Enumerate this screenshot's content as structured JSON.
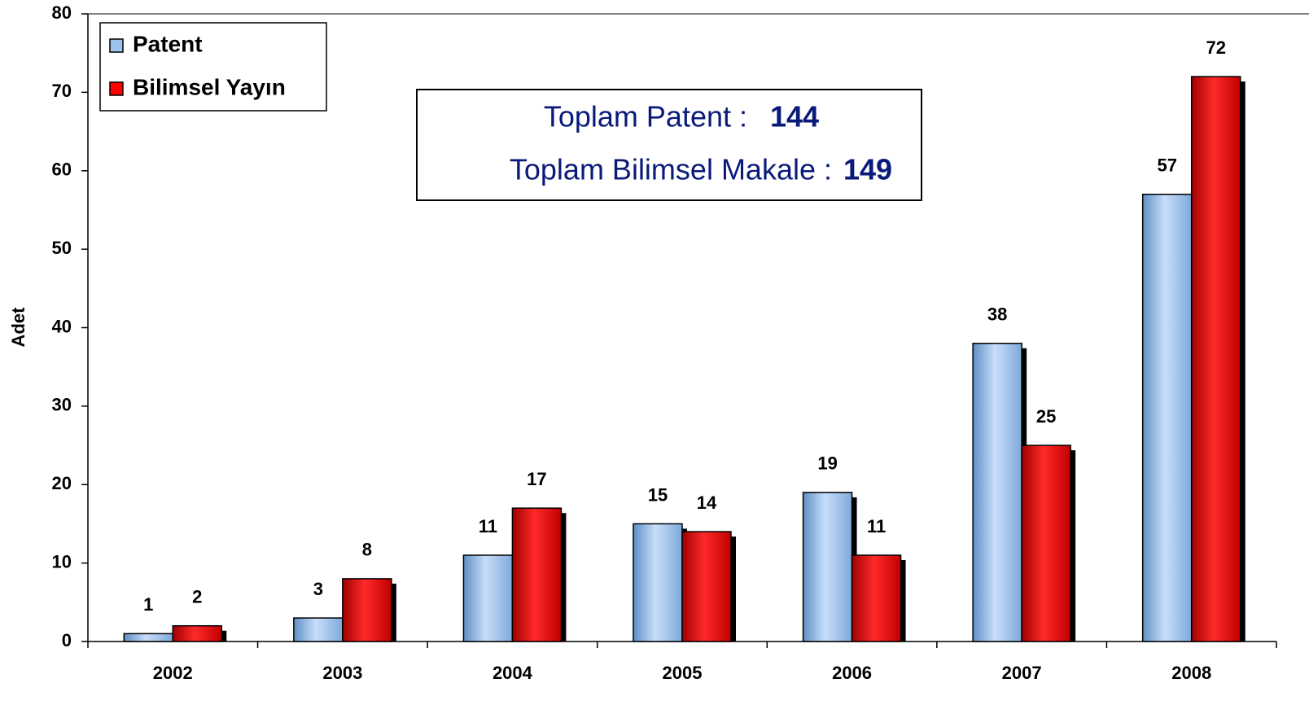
{
  "chart_data": {
    "type": "bar",
    "categories": [
      "2002",
      "2003",
      "2004",
      "2005",
      "2006",
      "2007",
      "2008"
    ],
    "series": [
      {
        "name": "Patent",
        "color": "#9cc3eb",
        "values": [
          1,
          3,
          11,
          15,
          19,
          38,
          57
        ]
      },
      {
        "name": "Bilimsel Yayın",
        "color": "#ff0000",
        "values": [
          2,
          8,
          17,
          14,
          11,
          25,
          72
        ]
      }
    ],
    "y_label": "Adet",
    "ylim": [
      0,
      80
    ],
    "yticks": [
      0,
      10,
      20,
      30,
      40,
      50,
      60,
      70,
      80
    ],
    "legend": "top-left",
    "annotations": [
      {
        "text": "Toplam Patent  :",
        "value": 144
      },
      {
        "text": "Toplam Bilimsel Makale  :",
        "value": 149
      }
    ]
  }
}
